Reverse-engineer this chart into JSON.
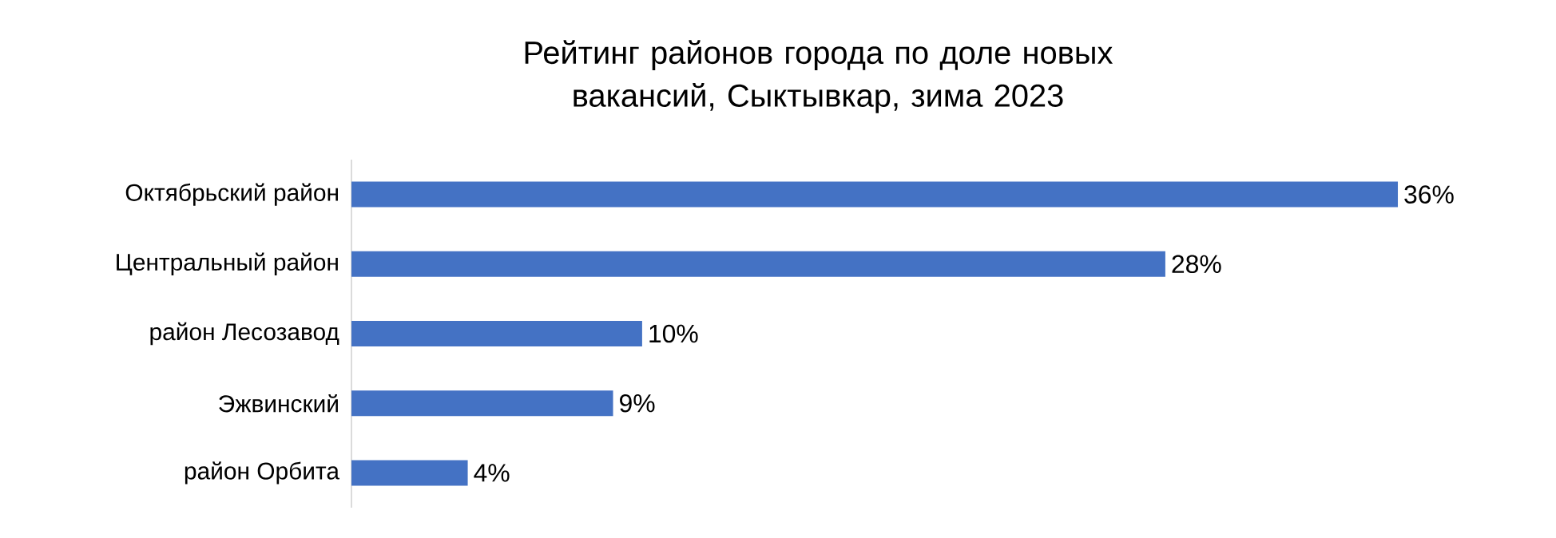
{
  "chart_data": {
    "type": "bar",
    "orientation": "horizontal",
    "title": "Рейтинг районов города по доле новых вакансий, Сыктывкар, зима 2023",
    "categories": [
      "Октябрьский район",
      "Центральный район",
      "район Лесозавод",
      "Эжвинский",
      "район Орбита"
    ],
    "values": [
      36,
      28,
      10,
      9,
      4
    ],
    "value_labels": [
      "36%",
      "28%",
      "10%",
      "9%",
      "4%"
    ],
    "color": "#4472c4"
  }
}
